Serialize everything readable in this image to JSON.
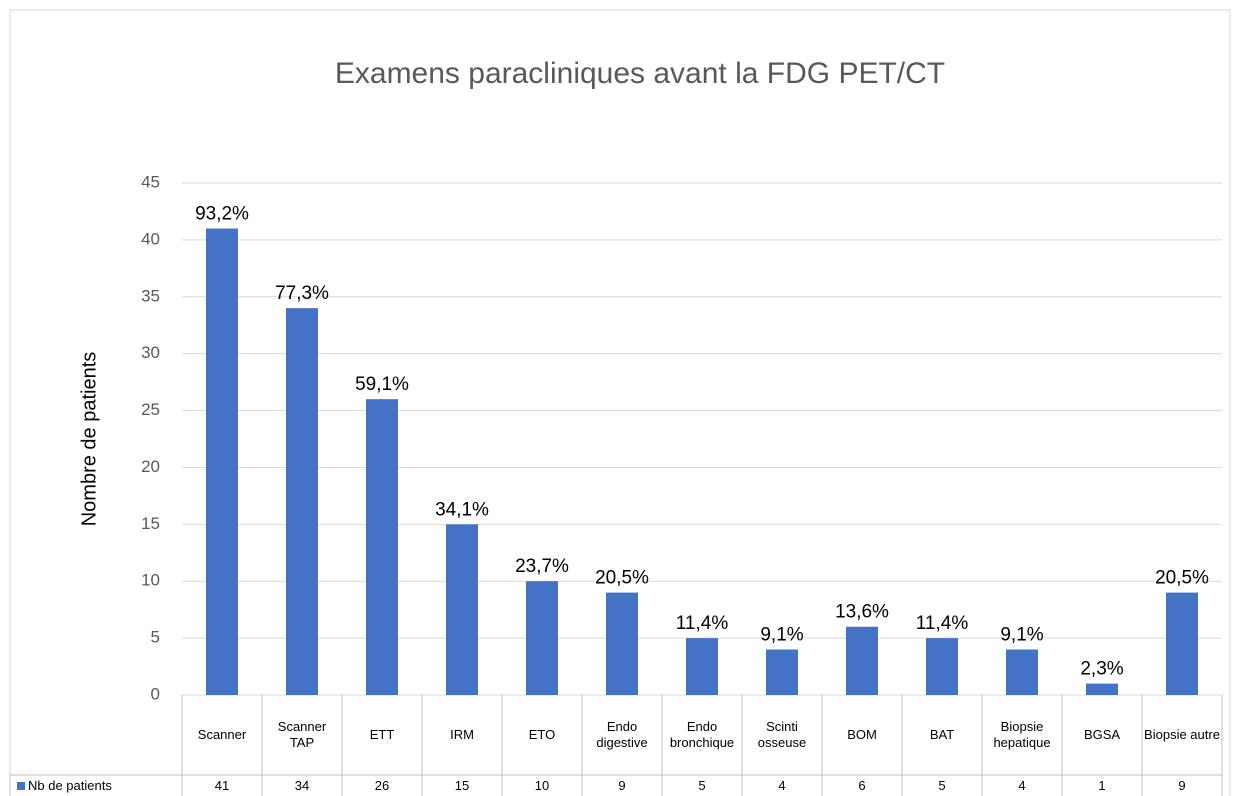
{
  "chart_data": {
    "type": "bar",
    "title": "Examens paracliniques avant la FDG PET/CT",
    "y_label": "Nombre de patients",
    "categories": [
      "Scanner",
      "Scanner TAP",
      "ETT",
      "IRM",
      "ETO",
      "Endo digestive",
      "Endo bronchique",
      "Scinti osseuse",
      "BOM",
      "BAT",
      "Biopsie hepatique",
      "BGSA",
      "Biopsie autre"
    ],
    "series": [
      {
        "name": "Nb de patients",
        "color": "#4472c4",
        "values": [
          41,
          34,
          26,
          15,
          10,
          9,
          5,
          4,
          6,
          5,
          4,
          1,
          9
        ]
      }
    ],
    "annotations": [
      "93,2%",
      "77,3%",
      "59,1%",
      "34,1%",
      "23,7%",
      "20,5%",
      "11,4%",
      "9,1%",
      "13,6%",
      "11,4%",
      "9,1%",
      "2,3%",
      "20,5%"
    ],
    "ylim": [
      0,
      45
    ],
    "yticks": [
      0,
      5,
      10,
      15,
      20,
      25,
      30,
      35,
      40,
      45
    ],
    "grid": true
  }
}
